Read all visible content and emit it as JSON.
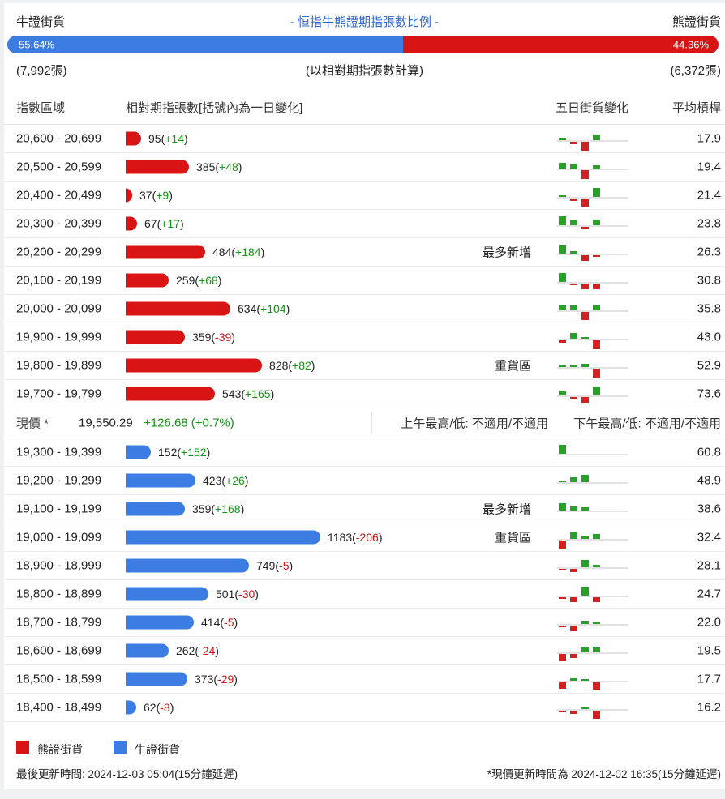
{
  "header": {
    "left_label": "牛證街貨",
    "title": "- 恒指牛熊證期指張數比例 -",
    "right_label": "熊證街貨",
    "bull_pct": "55.64%",
    "bear_pct": "44.36%",
    "bull_contracts": "(7,992張)",
    "center_note": "(以相對期指張數計算)",
    "bear_contracts": "(6,372張)"
  },
  "columns": {
    "range": "指數區域",
    "contracts": "相對期指張數[括號內為一日變化]",
    "five_day": "五日街貨變化",
    "leverage": "平均槓桿"
  },
  "price_row": {
    "label": "現價 *",
    "price": "19,550.29",
    "change": "+126.68 (+0.7%)",
    "am": "上午最高/低: 不適用/不適用",
    "pm": "下午最高/低: 不適用/不適用"
  },
  "legend": {
    "bear": "熊證街貨",
    "bull": "牛證街貨"
  },
  "footer": {
    "left": "最後更新時間: 2024-12-03 05:04(15分鐘延遲)",
    "right": "*現價更新時間為 2024-12-02 16:35(15分鐘延遲)"
  },
  "colors": {
    "bull_blue": "#3b7de2",
    "bear_red": "#d81414",
    "title_blue": "#3366cc",
    "pos_green": "#149414",
    "neg_red": "#cc1111",
    "mini_green": "#27a127",
    "mini_red": "#d32020"
  },
  "chart_data": {
    "type": "bar",
    "orientation": "horizontal",
    "title": "- 恒指牛熊證期指張數比例 -",
    "value_note": "相對期指張數[括號內為一日變化]",
    "bull_bear_ratio": {
      "bull_pct": 55.64,
      "bear_pct": 44.36,
      "bull_contracts": 7992,
      "bear_contracts": 6372
    },
    "max_value": 1183,
    "sections": [
      {
        "name": "bear",
        "color": "#d81414",
        "rows": [
          {
            "range": "20,600 - 20,699",
            "value": 95,
            "change": "+14",
            "change_dir": "pos",
            "tag": "",
            "five_day": [
              0.7,
              -0.8,
              -3,
              2,
              0
            ],
            "leverage": "17.9"
          },
          {
            "range": "20,500 - 20,599",
            "value": 385,
            "change": "+48",
            "change_dir": "pos",
            "tag": "",
            "five_day": [
              2,
              1.6,
              -3,
              1,
              0
            ],
            "leverage": "19.4"
          },
          {
            "range": "20,400 - 20,499",
            "value": 37,
            "change": "+9",
            "change_dir": "pos",
            "tag": "",
            "five_day": [
              0.5,
              -0.8,
              -2.6,
              3,
              0
            ],
            "leverage": "21.4"
          },
          {
            "range": "20,300 - 20,399",
            "value": 67,
            "change": "+17",
            "change_dir": "pos",
            "tag": "",
            "five_day": [
              3,
              1.6,
              -0.8,
              2,
              0
            ],
            "leverage": "23.8"
          },
          {
            "range": "20,200 - 20,299",
            "value": 484,
            "change": "+184",
            "change_dir": "pos",
            "tag": "最多新增",
            "five_day": [
              3,
              0.8,
              -1.8,
              -0.3,
              0
            ],
            "leverage": "26.3"
          },
          {
            "range": "20,100 - 20,199",
            "value": 259,
            "change": "+68",
            "change_dir": "pos",
            "tag": "",
            "five_day": [
              3,
              -0.3,
              -2,
              -2,
              0
            ],
            "leverage": "30.8"
          },
          {
            "range": "20,000 - 20,099",
            "value": 634,
            "change": "+104",
            "change_dir": "pos",
            "tag": "",
            "five_day": [
              2,
              1.5,
              -2.8,
              1.8,
              0
            ],
            "leverage": "35.8"
          },
          {
            "range": "19,900 - 19,999",
            "value": 359,
            "change": "-39",
            "change_dir": "neg",
            "tag": "",
            "five_day": [
              -0.7,
              2,
              0.3,
              -3,
              0
            ],
            "leverage": "43.0"
          },
          {
            "range": "19,800 - 19,899",
            "value": 828,
            "change": "+82",
            "change_dir": "pos",
            "tag": "重貨區",
            "five_day": [
              0.8,
              0.8,
              1.2,
              -3,
              0
            ],
            "leverage": "52.9"
          },
          {
            "range": "19,700 - 19,799",
            "value": 543,
            "change": "+165",
            "change_dir": "pos",
            "tag": "",
            "five_day": [
              1.5,
              -0.8,
              -2,
              3,
              0
            ],
            "leverage": "73.6"
          }
        ]
      },
      {
        "name": "bull",
        "color": "#3b7de2",
        "rows": [
          {
            "range": "19,300 - 19,399",
            "value": 152,
            "change": "+152",
            "change_dir": "pos",
            "tag": "",
            "five_day": [
              3,
              0,
              0,
              0,
              0
            ],
            "leverage": "60.8"
          },
          {
            "range": "19,200 - 19,299",
            "value": 423,
            "change": "+26",
            "change_dir": "pos",
            "tag": "",
            "five_day": [
              0.3,
              1.7,
              2.5,
              0,
              0
            ],
            "leverage": "48.9"
          },
          {
            "range": "19,100 - 19,199",
            "value": 359,
            "change": "+168",
            "change_dir": "pos",
            "tag": "最多新增",
            "five_day": [
              2.5,
              1.5,
              1,
              0,
              0
            ],
            "leverage": "38.6"
          },
          {
            "range": "19,000 - 19,099",
            "value": 1183,
            "change": "-206",
            "change_dir": "neg",
            "tag": "重貨區",
            "five_day": [
              -3,
              2.2,
              1,
              1.5,
              0
            ],
            "leverage": "32.4"
          },
          {
            "range": "18,900 - 18,999",
            "value": 749,
            "change": "-5",
            "change_dir": "neg",
            "tag": "",
            "five_day": [
              -0.3,
              -1,
              2.5,
              0.8,
              0
            ],
            "leverage": "28.1"
          },
          {
            "range": "18,800 - 18,899",
            "value": 501,
            "change": "-30",
            "change_dir": "neg",
            "tag": "",
            "five_day": [
              -0.3,
              -1.7,
              3,
              -1.7,
              0
            ],
            "leverage": "24.7"
          },
          {
            "range": "18,700 - 18,799",
            "value": 414,
            "change": "-5",
            "change_dir": "neg",
            "tag": "",
            "five_day": [
              -0.3,
              -1.8,
              1,
              0.5,
              0
            ],
            "leverage": "22.0"
          },
          {
            "range": "18,600 - 18,699",
            "value": 262,
            "change": "-24",
            "change_dir": "neg",
            "tag": "",
            "five_day": [
              -2.4,
              -1.3,
              1.7,
              1.5,
              0
            ],
            "leverage": "19.5"
          },
          {
            "range": "18,500 - 18,599",
            "value": 373,
            "change": "-29",
            "change_dir": "neg",
            "tag": "",
            "five_day": [
              -2.2,
              0.8,
              0.3,
              -2.6,
              0
            ],
            "leverage": "17.7"
          },
          {
            "range": "18,400 - 18,499",
            "value": 62,
            "change": "-8",
            "change_dir": "neg",
            "tag": "",
            "five_day": [
              -0.4,
              -1,
              0.8,
              -2.8,
              0
            ],
            "leverage": "16.2"
          }
        ]
      }
    ]
  }
}
